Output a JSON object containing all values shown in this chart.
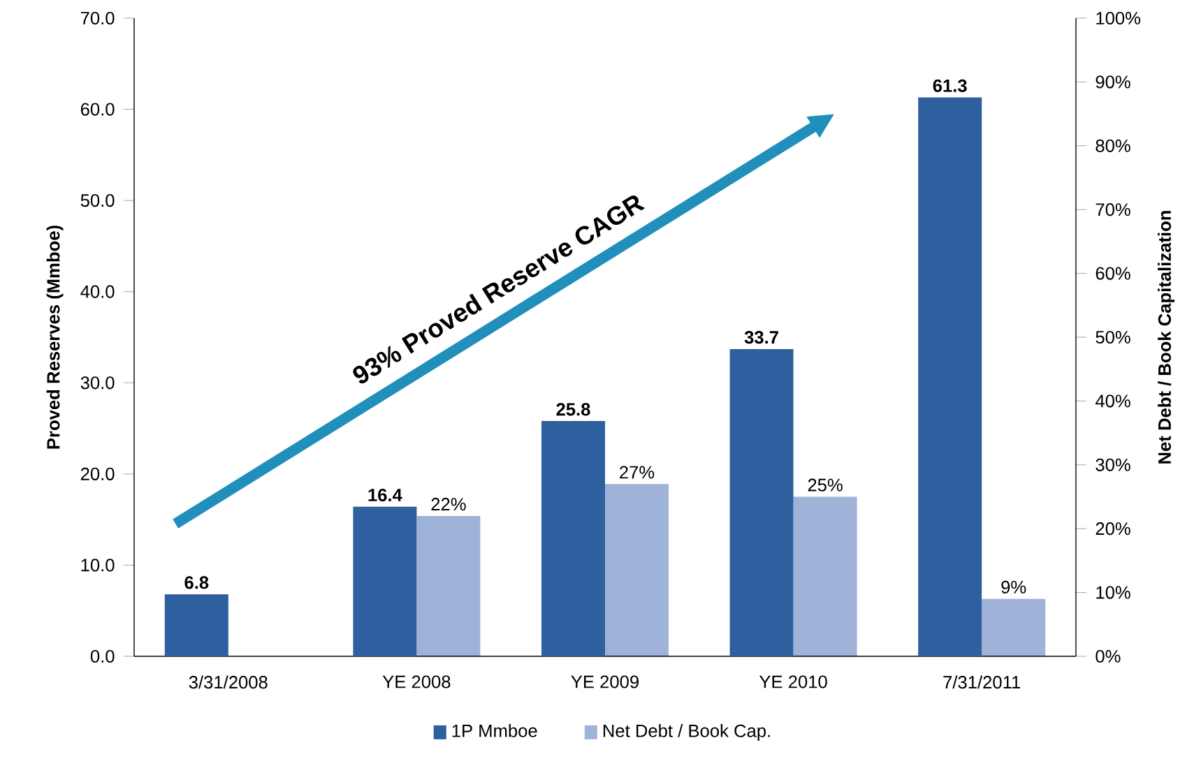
{
  "chart_data": {
    "type": "bar",
    "ylabel": "Proved Reserves (Mmboe)",
    "y2label": "Net Debt / Book Capitalization",
    "categories": [
      "3/31/2008",
      "YE 2008",
      "YE 2009",
      "YE 2010",
      "7/31/2011"
    ],
    "series": [
      {
        "name": "1P Mmboe",
        "color": "#2e5f9e",
        "values": [
          6.8,
          16.4,
          25.8,
          33.7,
          61.3
        ],
        "value_labels": [
          "6.8",
          "16.4",
          "25.8",
          "33.7",
          "61.3"
        ]
      },
      {
        "name": "Net Debt / Book Cap.",
        "color": "#9fb3d9",
        "axis": "y2",
        "values": [
          null,
          22,
          27,
          25,
          9
        ],
        "value_labels": [
          null,
          "22%",
          "27%",
          "25%",
          "9%"
        ]
      }
    ],
    "ylim": [
      0,
      70
    ],
    "yticks": [
      {
        "value": 0,
        "label": "0.0"
      },
      {
        "value": 10,
        "label": "10.0"
      },
      {
        "value": 20,
        "label": "20.0"
      },
      {
        "value": 30,
        "label": "30.0"
      },
      {
        "value": 40,
        "label": "40.0"
      },
      {
        "value": 50,
        "label": "50.0"
      },
      {
        "value": 60,
        "label": "60.0"
      },
      {
        "value": 70,
        "label": "70.0"
      }
    ],
    "y2lim": [
      0,
      100
    ],
    "y2ticks": [
      {
        "value": 0,
        "label": "0%"
      },
      {
        "value": 10,
        "label": "10%"
      },
      {
        "value": 20,
        "label": "20%"
      },
      {
        "value": 30,
        "label": "30%"
      },
      {
        "value": 40,
        "label": "40%"
      },
      {
        "value": 50,
        "label": "50%"
      },
      {
        "value": 60,
        "label": "60%"
      },
      {
        "value": 70,
        "label": "70%"
      },
      {
        "value": 80,
        "label": "80%"
      },
      {
        "value": 90,
        "label": "90%"
      },
      {
        "value": 100,
        "label": "100%"
      }
    ],
    "annotations": [
      "93% Proved Reserve CAGR"
    ],
    "legend": "bottom",
    "grid": false
  }
}
